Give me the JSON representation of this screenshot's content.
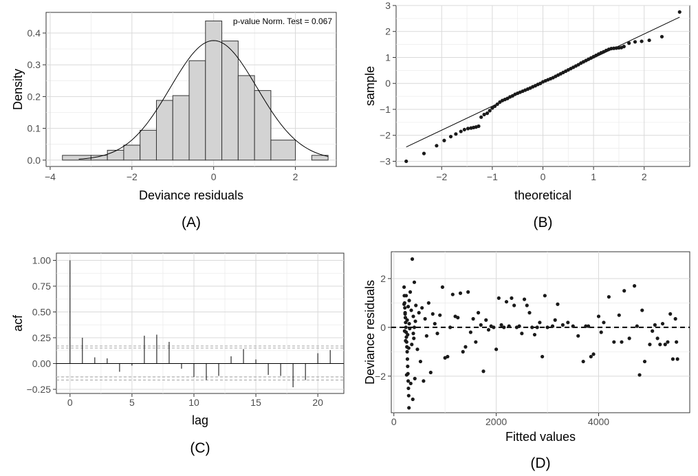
{
  "chart_data": [
    {
      "type": "histogram",
      "panel_label": "(A)",
      "xlabel": "Deviance residuals",
      "ylabel": "Density",
      "xlim": [
        -4.1,
        3.0
      ],
      "ylim": [
        -0.02,
        0.465
      ],
      "x_ticks": [
        -4,
        -2,
        0,
        2
      ],
      "x_tick_labels": [
        "−4",
        "−2",
        "0",
        "2"
      ],
      "y_ticks": [
        0.0,
        0.1,
        0.2,
        0.3,
        0.4
      ],
      "y_tick_labels": [
        "0.0",
        "0.1",
        "0.2",
        "0.3",
        "0.4"
      ],
      "bins": [
        {
          "x0": -3.7,
          "x1": -3.0,
          "density": 0.015
        },
        {
          "x0": -3.0,
          "x1": -2.6,
          "density": 0.015
        },
        {
          "x0": -2.6,
          "x1": -2.2,
          "density": 0.031
        },
        {
          "x0": -2.2,
          "x1": -1.8,
          "density": 0.047
        },
        {
          "x0": -1.8,
          "x1": -1.4,
          "density": 0.094
        },
        {
          "x0": -1.4,
          "x1": -1.0,
          "density": 0.188
        },
        {
          "x0": -1.0,
          "x1": -0.6,
          "density": 0.203
        },
        {
          "x0": -0.6,
          "x1": -0.2,
          "density": 0.313
        },
        {
          "x0": -0.2,
          "x1": 0.2,
          "density": 0.438
        },
        {
          "x0": 0.2,
          "x1": 0.6,
          "density": 0.375
        },
        {
          "x0": 0.6,
          "x1": 1.0,
          "density": 0.266
        },
        {
          "x0": 1.0,
          "x1": 1.4,
          "density": 0.219
        },
        {
          "x0": 1.4,
          "x1": 2.0,
          "density": 0.063
        },
        {
          "x0": 2.4,
          "x1": 2.8,
          "density": 0.015
        }
      ],
      "normal_curve": {
        "mean": 0.0,
        "sd": 1.06
      },
      "annotation": "p-value Norm. Test = 0.067"
    },
    {
      "type": "scatter",
      "panel_label": "(B)",
      "xlabel": "theoretical",
      "ylabel": "sample",
      "xlim": [
        -2.9,
        2.9
      ],
      "ylim": [
        -3.2,
        3.0
      ],
      "x_ticks": [
        -2,
        -1,
        0,
        1,
        2
      ],
      "x_tick_labels": [
        "−2",
        "−1",
        "0",
        "1",
        "2"
      ],
      "y_ticks": [
        -3,
        -2,
        -1,
        0,
        1,
        2,
        3
      ],
      "y_tick_labels": [
        "−3",
        "−2",
        "−1",
        "0",
        "1",
        "2",
        "3"
      ],
      "reference_line": {
        "x": [
          -2.7,
          2.7
        ],
        "y": [
          -2.45,
          2.55
        ]
      },
      "points": {
        "x": [
          -2.7,
          -2.35,
          -2.1,
          -1.95,
          -1.82,
          -1.72,
          -1.62,
          -1.55,
          -1.48,
          -1.42,
          -1.37,
          -1.32,
          -1.27,
          -1.22,
          -1.16,
          -1.1,
          -1.05,
          -1.0,
          -0.95,
          -0.9,
          -0.85,
          -0.8,
          -0.75,
          -0.7,
          -0.65,
          -0.6,
          -0.55,
          -0.5,
          -0.45,
          -0.4,
          -0.35,
          -0.3,
          -0.25,
          -0.2,
          -0.15,
          -0.1,
          -0.05,
          0.0,
          0.05,
          0.1,
          0.15,
          0.2,
          0.25,
          0.3,
          0.35,
          0.4,
          0.45,
          0.5,
          0.55,
          0.6,
          0.65,
          0.7,
          0.75,
          0.8,
          0.85,
          0.9,
          0.95,
          1.0,
          1.05,
          1.1,
          1.15,
          1.2,
          1.25,
          1.3,
          1.35,
          1.4,
          1.45,
          1.5,
          1.55,
          1.6,
          1.7,
          1.82,
          1.95,
          2.1,
          2.35,
          2.7
        ],
        "y": [
          -3.0,
          -2.7,
          -2.4,
          -2.2,
          -2.05,
          -1.95,
          -1.85,
          -1.78,
          -1.74,
          -1.72,
          -1.7,
          -1.68,
          -1.65,
          -1.3,
          -1.2,
          -1.15,
          -1.05,
          -0.95,
          -0.88,
          -0.8,
          -0.72,
          -0.66,
          -0.62,
          -0.58,
          -0.52,
          -0.48,
          -0.42,
          -0.38,
          -0.34,
          -0.3,
          -0.26,
          -0.22,
          -0.18,
          -0.13,
          -0.09,
          -0.04,
          0.0,
          0.06,
          0.1,
          0.14,
          0.18,
          0.22,
          0.27,
          0.32,
          0.37,
          0.42,
          0.47,
          0.52,
          0.57,
          0.62,
          0.67,
          0.72,
          0.78,
          0.83,
          0.88,
          0.93,
          0.98,
          1.03,
          1.08,
          1.13,
          1.18,
          1.22,
          1.27,
          1.31,
          1.34,
          1.35,
          1.36,
          1.37,
          1.38,
          1.42,
          1.55,
          1.6,
          1.62,
          1.66,
          1.8,
          2.75
        ]
      }
    },
    {
      "type": "bar",
      "panel_label": "(C)",
      "xlabel": "lag",
      "ylabel": "acf",
      "xlim": [
        -1.1,
        22.1
      ],
      "ylim": [
        -0.29,
        1.07
      ],
      "x_ticks": [
        0,
        5,
        10,
        15,
        20
      ],
      "x_tick_labels": [
        "0",
        "5",
        "10",
        "15",
        "20"
      ],
      "y_ticks": [
        -0.25,
        0.0,
        0.25,
        0.5,
        0.75,
        1.0
      ],
      "y_tick_labels": [
        "−0.25",
        "0.00",
        "0.25",
        "0.50",
        "0.75",
        "1.00"
      ],
      "lags": [
        0,
        1,
        2,
        3,
        4,
        5,
        6,
        7,
        8,
        9,
        10,
        11,
        12,
        13,
        14,
        15,
        16,
        17,
        18,
        19,
        20,
        21
      ],
      "values": [
        1.0,
        0.25,
        0.06,
        0.05,
        -0.08,
        -0.02,
        0.27,
        0.28,
        0.21,
        -0.05,
        -0.13,
        -0.16,
        -0.12,
        0.07,
        0.14,
        0.04,
        -0.11,
        -0.12,
        -0.23,
        -0.16,
        0.1,
        0.13
      ],
      "confidence_bounds": [
        0.17,
        0.15,
        -0.13,
        -0.16
      ]
    },
    {
      "type": "scatter",
      "panel_label": "(D)",
      "xlabel": "Fitted values",
      "ylabel": "Deviance residuals",
      "xlim": [
        -50,
        5780
      ],
      "ylim": [
        -3.5,
        3.1
      ],
      "x_ticks": [
        0,
        2000,
        4000
      ],
      "x_tick_labels": [
        "0",
        "2000",
        "4000"
      ],
      "y_ticks": [
        -2,
        0,
        2
      ],
      "y_tick_labels": [
        "−2",
        "0",
        "2"
      ],
      "reference_hline": 0,
      "points": {
        "x": [
          200,
          205,
          210,
          215,
          220,
          225,
          230,
          235,
          240,
          245,
          250,
          255,
          260,
          265,
          270,
          275,
          280,
          285,
          290,
          295,
          300,
          200,
          210,
          220,
          230,
          240,
          250,
          260,
          270,
          280,
          290,
          300,
          310,
          320,
          330,
          340,
          350,
          360,
          370,
          380,
          390,
          400,
          410,
          420,
          380,
          400,
          430,
          460,
          490,
          520,
          550,
          580,
          610,
          640,
          680,
          720,
          760,
          800,
          850,
          900,
          950,
          1000,
          1050,
          1100,
          1150,
          1200,
          1250,
          1300,
          1350,
          1400,
          1450,
          1500,
          1550,
          1600,
          1650,
          1700,
          1750,
          1800,
          1850,
          1900,
          1950,
          2000,
          2050,
          2100,
          2150,
          2200,
          2250,
          2300,
          2350,
          2400,
          2450,
          2500,
          2550,
          2600,
          2650,
          2700,
          2750,
          2800,
          2850,
          2900,
          2950,
          3000,
          3100,
          3150,
          3200,
          3300,
          3400,
          3500,
          3600,
          3700,
          3750,
          3800,
          3850,
          3900,
          4000,
          4050,
          4100,
          4200,
          4300,
          4400,
          4450,
          4500,
          4600,
          4700,
          4750,
          4800,
          4850,
          4900,
          5000,
          5050,
          5100,
          5150,
          5200,
          5250,
          5300,
          5350,
          5400,
          5450,
          5500,
          5520,
          5540
        ],
        "y": [
          1.65,
          1.3,
          1.0,
          0.8,
          0.6,
          0.4,
          0.2,
          0.0,
          -0.2,
          -0.4,
          -0.6,
          -0.8,
          -1.0,
          -1.3,
          -1.6,
          -1.9,
          -2.2,
          -2.5,
          -2.8,
          -3.3,
          1.1,
          0.95,
          -0.15,
          0.55,
          -0.55,
          1.3,
          -1.95,
          0.3,
          -0.3,
          0.85,
          -0.85,
          0.15,
          -0.05,
          1.45,
          -2.3,
          0.7,
          -0.7,
          2.8,
          -2.95,
          0.45,
          -0.45,
          1.85,
          -2.1,
          0.25,
          -0.25,
          0.0,
          0.9,
          -0.9,
          0.6,
          -1.4,
          0.8,
          -2.2,
          0.35,
          -0.35,
          1.0,
          -1.85,
          0.55,
          0.15,
          -0.25,
          0.5,
          1.65,
          -1.25,
          -1.2,
          0.0,
          1.35,
          0.45,
          0.4,
          1.4,
          -1.0,
          -0.8,
          1.45,
          -0.2,
          0.35,
          -0.6,
          0.6,
          0.1,
          -1.8,
          0.3,
          -0.1,
          0.05,
          0.0,
          -0.9,
          1.2,
          0.1,
          0.0,
          1.05,
          0.05,
          1.2,
          0.9,
          0.0,
          0.05,
          -0.25,
          1.15,
          0.9,
          0.6,
          0.0,
          -0.3,
          0.0,
          0.2,
          -1.2,
          1.3,
          0.0,
          0.05,
          0.3,
          0.95,
          0.1,
          0.2,
          0.05,
          -0.35,
          -1.4,
          0.05,
          0.05,
          -1.2,
          -1.1,
          0.45,
          -0.2,
          0.2,
          1.25,
          -0.6,
          0.5,
          -0.6,
          1.5,
          -0.45,
          1.7,
          0.05,
          -1.95,
          0.7,
          -1.4,
          -0.7,
          -0.15,
          0.1,
          -0.45,
          -0.7,
          0.15,
          -0.7,
          -0.6,
          0.55,
          -1.3,
          0.35,
          -0.6,
          -1.3
        ]
      }
    }
  ]
}
